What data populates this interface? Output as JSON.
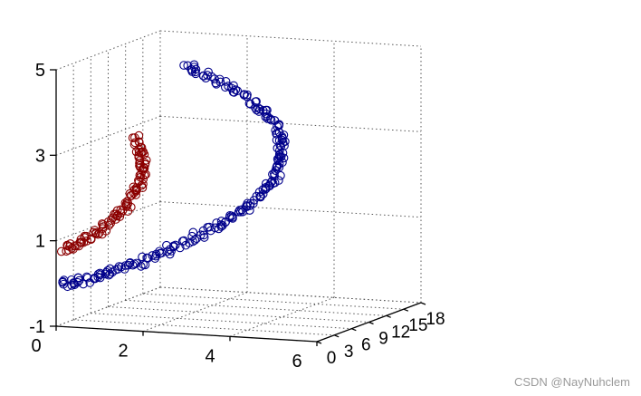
{
  "chart_data": {
    "type": "scatter3d",
    "title": "",
    "axes": {
      "x": {
        "range": [
          0,
          6
        ],
        "ticks": [
          0,
          2,
          4,
          6
        ]
      },
      "y": {
        "range": [
          0,
          18
        ],
        "ticks": [
          0,
          3,
          6,
          9,
          12,
          15,
          18
        ]
      },
      "z": {
        "range": [
          -1,
          5
        ],
        "ticks": [
          -1,
          1,
          3,
          5
        ]
      }
    },
    "grid": true,
    "series": [
      {
        "color": "#00008b",
        "marker": "circle-open",
        "points": [
          [
            0.1,
            0.0,
            0.0
          ],
          [
            0.6,
            0.3,
            0.1
          ],
          [
            1.1,
            0.8,
            0.25
          ],
          [
            1.6,
            1.4,
            0.45
          ],
          [
            2.1,
            2.2,
            0.7
          ],
          [
            2.6,
            3.1,
            1.0
          ],
          [
            3.1,
            4.2,
            1.3
          ],
          [
            3.5,
            5.4,
            1.6
          ],
          [
            3.8,
            6.6,
            1.95
          ],
          [
            4.0,
            7.7,
            2.3
          ],
          [
            4.05,
            8.4,
            2.7
          ],
          [
            4.0,
            8.9,
            3.1
          ],
          [
            3.85,
            8.9,
            3.5
          ],
          [
            3.6,
            8.4,
            3.9
          ],
          [
            3.2,
            7.4,
            4.3
          ],
          [
            2.7,
            6.0,
            4.7
          ],
          [
            2.3,
            4.8,
            5.0
          ]
        ]
      },
      {
        "color": "#8b0000",
        "marker": "circle-open",
        "points": [
          [
            0.2,
            0.0,
            0.8
          ],
          [
            0.5,
            0.3,
            1.0
          ],
          [
            0.9,
            0.5,
            1.25
          ],
          [
            1.25,
            0.75,
            1.55
          ],
          [
            1.55,
            0.95,
            1.95
          ],
          [
            1.75,
            1.1,
            2.35
          ],
          [
            1.85,
            1.2,
            2.75
          ],
          [
            1.8,
            1.25,
            3.1
          ],
          [
            1.65,
            1.2,
            3.45
          ]
        ]
      }
    ]
  },
  "watermark": "CSDN @NayNuhclem"
}
